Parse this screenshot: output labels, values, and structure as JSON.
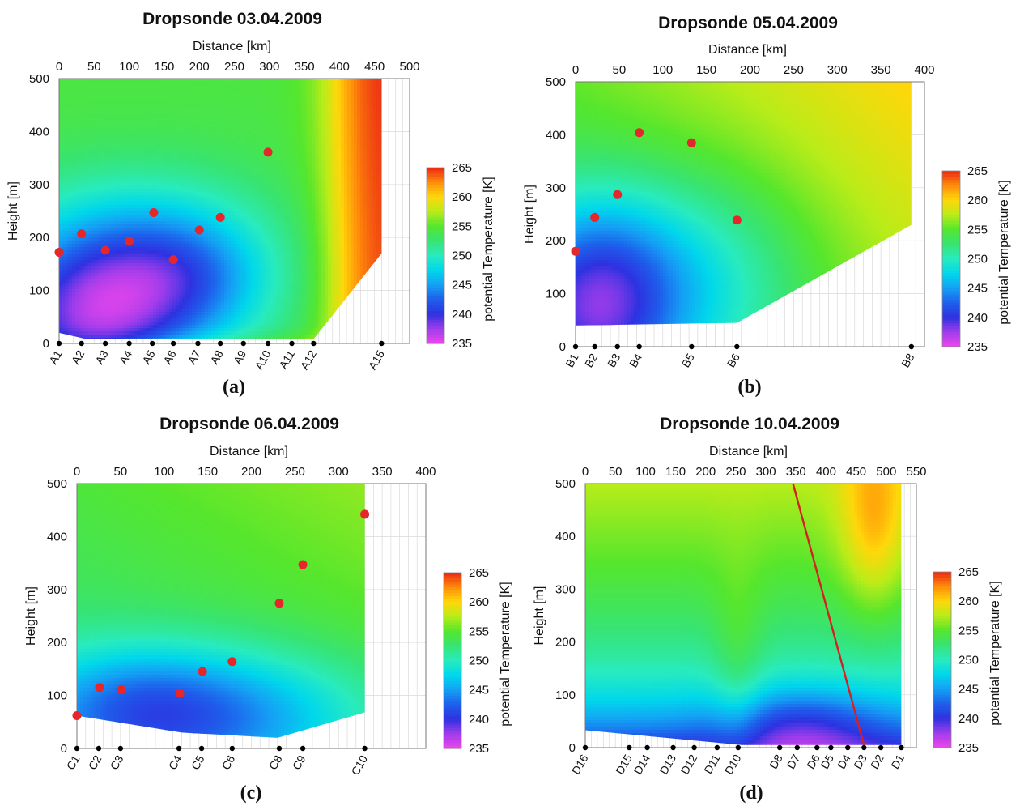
{
  "figure_labels": {
    "panel_tags": [
      "(a)",
      "(b)",
      "(c)",
      "(d)"
    ]
  },
  "chart_data": [
    {
      "type": "heatmap",
      "panel": "(a)",
      "title": "Dropsonde 03.04.2009",
      "xlabel": "Distance [km]",
      "ylabel": "Height [m]",
      "colorbar_label": "potential Temperature [K]",
      "xlim": [
        0,
        500
      ],
      "ylim": [
        0,
        500
      ],
      "xticks": [
        0,
        50,
        100,
        150,
        200,
        250,
        300,
        350,
        400,
        450,
        500
      ],
      "yticks": [
        0,
        100,
        200,
        300,
        400,
        500
      ],
      "cbar_range": [
        235,
        265
      ],
      "cbar_ticks": [
        235,
        240,
        245,
        250,
        255,
        260,
        265
      ],
      "domain_polygon_km_m": [
        [
          0,
          500
        ],
        [
          460,
          500
        ],
        [
          460,
          170
        ],
        [
          363,
          8
        ],
        [
          40,
          8
        ],
        [
          0,
          20
        ]
      ],
      "stations": [
        {
          "name": "A1",
          "x": 0
        },
        {
          "name": "A2",
          "x": 32
        },
        {
          "name": "A3",
          "x": 66
        },
        {
          "name": "A4",
          "x": 100
        },
        {
          "name": "A5",
          "x": 133
        },
        {
          "name": "A6",
          "x": 163
        },
        {
          "name": "A7",
          "x": 198
        },
        {
          "name": "A8",
          "x": 230
        },
        {
          "name": "A9",
          "x": 263
        },
        {
          "name": "A10",
          "x": 298
        },
        {
          "name": "A11",
          "x": 332
        },
        {
          "name": "A12",
          "x": 363
        },
        {
          "name": "A15",
          "x": 460
        }
      ],
      "cloud_top_points": [
        {
          "x": 0,
          "y": 172
        },
        {
          "x": 32,
          "y": 207
        },
        {
          "x": 66,
          "y": 176
        },
        {
          "x": 100,
          "y": 193
        },
        {
          "x": 135,
          "y": 247
        },
        {
          "x": 163,
          "y": 158
        },
        {
          "x": 200,
          "y": 214
        },
        {
          "x": 230,
          "y": 238
        },
        {
          "x": 298,
          "y": 361
        }
      ],
      "field": "a"
    },
    {
      "type": "heatmap",
      "panel": "(b)",
      "title": "Dropsonde 05.04.2009",
      "xlabel": "Distance [km]",
      "ylabel": "Height [m]",
      "colorbar_label": "potential Temperature [K]",
      "xlim": [
        0,
        400
      ],
      "ylim": [
        0,
        500
      ],
      "xticks": [
        0,
        50,
        100,
        150,
        200,
        250,
        300,
        350,
        400
      ],
      "yticks": [
        0,
        100,
        200,
        300,
        400,
        500
      ],
      "cbar_range": [
        235,
        265
      ],
      "cbar_ticks": [
        235,
        240,
        245,
        250,
        255,
        260,
        265
      ],
      "domain_polygon_km_m": [
        [
          0,
          500
        ],
        [
          385,
          500
        ],
        [
          385,
          230
        ],
        [
          185,
          45
        ],
        [
          0,
          40
        ]
      ],
      "stations": [
        {
          "name": "B1",
          "x": 0
        },
        {
          "name": "B2",
          "x": 22
        },
        {
          "name": "B3",
          "x": 48
        },
        {
          "name": "B4",
          "x": 73
        },
        {
          "name": "B5",
          "x": 133
        },
        {
          "name": "B6",
          "x": 185
        },
        {
          "name": "B8",
          "x": 385
        }
      ],
      "cloud_top_points": [
        {
          "x": 0,
          "y": 180
        },
        {
          "x": 22,
          "y": 244
        },
        {
          "x": 48,
          "y": 287
        },
        {
          "x": 73,
          "y": 404
        },
        {
          "x": 133,
          "y": 385
        },
        {
          "x": 185,
          "y": 239
        }
      ],
      "field": "b"
    },
    {
      "type": "heatmap",
      "panel": "(c)",
      "title": "Dropsonde 06.04.2009",
      "xlabel": "Distance [km]",
      "ylabel": "Height [m]",
      "colorbar_label": "potential Temperature [K]",
      "xlim": [
        0,
        400
      ],
      "ylim": [
        0,
        500
      ],
      "xticks": [
        0,
        50,
        100,
        150,
        200,
        250,
        300,
        350,
        400
      ],
      "yticks": [
        0,
        100,
        200,
        300,
        400,
        500
      ],
      "cbar_range": [
        235,
        265
      ],
      "cbar_ticks": [
        235,
        240,
        245,
        250,
        255,
        260,
        265
      ],
      "domain_polygon_km_m": [
        [
          0,
          500
        ],
        [
          330,
          500
        ],
        [
          330,
          68
        ],
        [
          230,
          20
        ],
        [
          120,
          30
        ],
        [
          0,
          62
        ]
      ],
      "stations": [
        {
          "name": "C1",
          "x": 0
        },
        {
          "name": "C2",
          "x": 25
        },
        {
          "name": "C3",
          "x": 50
        },
        {
          "name": "C4",
          "x": 117
        },
        {
          "name": "C5",
          "x": 143
        },
        {
          "name": "C6",
          "x": 178
        },
        {
          "name": "C8",
          "x": 232
        },
        {
          "name": "C9",
          "x": 259
        },
        {
          "name": "C10",
          "x": 330
        }
      ],
      "cloud_top_points": [
        {
          "x": 0,
          "y": 62
        },
        {
          "x": 26,
          "y": 115
        },
        {
          "x": 51,
          "y": 111
        },
        {
          "x": 118,
          "y": 104
        },
        {
          "x": 144,
          "y": 145
        },
        {
          "x": 178,
          "y": 164
        },
        {
          "x": 232,
          "y": 274
        },
        {
          "x": 259,
          "y": 347
        },
        {
          "x": 330,
          "y": 442
        }
      ],
      "field": "c"
    },
    {
      "type": "heatmap",
      "panel": "(d)",
      "title": "Dropsonde 10.04.2009",
      "xlabel": "Distance [km]",
      "ylabel": "Height [m]",
      "colorbar_label": "potential Temperature [K]",
      "xlim": [
        0,
        550
      ],
      "ylim": [
        0,
        500
      ],
      "xticks": [
        0,
        50,
        100,
        150,
        200,
        250,
        300,
        350,
        400,
        450,
        500,
        550
      ],
      "yticks": [
        0,
        100,
        200,
        300,
        400,
        500
      ],
      "cbar_range": [
        235,
        265
      ],
      "cbar_ticks": [
        235,
        240,
        245,
        250,
        255,
        260,
        265
      ],
      "domain_polygon_km_m": [
        [
          0,
          500
        ],
        [
          525,
          500
        ],
        [
          525,
          5
        ],
        [
          260,
          5
        ],
        [
          0,
          33
        ]
      ],
      "stations": [
        {
          "name": "D16",
          "x": 0
        },
        {
          "name": "D15",
          "x": 73
        },
        {
          "name": "D14",
          "x": 103
        },
        {
          "name": "D13",
          "x": 146
        },
        {
          "name": "D12",
          "x": 181
        },
        {
          "name": "D11",
          "x": 219
        },
        {
          "name": "D10",
          "x": 254
        },
        {
          "name": "D8",
          "x": 323
        },
        {
          "name": "D7",
          "x": 352
        },
        {
          "name": "D6",
          "x": 385
        },
        {
          "name": "D5",
          "x": 408
        },
        {
          "name": "D4",
          "x": 436
        },
        {
          "name": "D3",
          "x": 463
        },
        {
          "name": "D2",
          "x": 491
        },
        {
          "name": "D1",
          "x": 525
        }
      ],
      "red_line_km_m": [
        [
          345,
          500
        ],
        [
          463,
          5
        ]
      ],
      "field": "d"
    }
  ]
}
